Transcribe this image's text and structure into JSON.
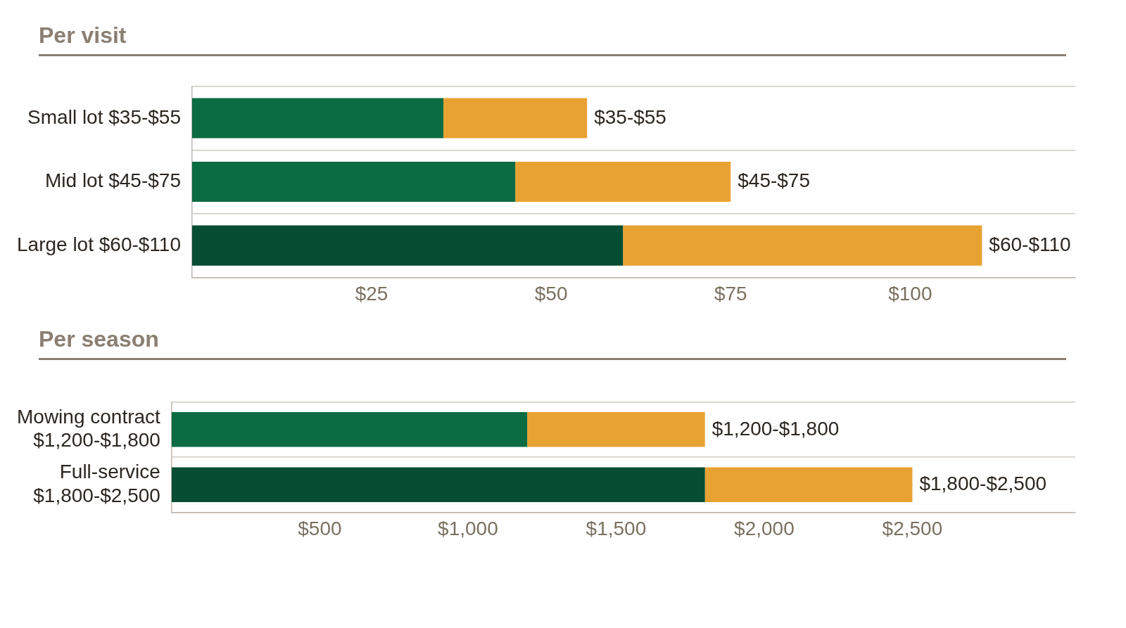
{
  "chart_data": [
    {
      "type": "bar",
      "title": "Per visit",
      "orientation": "horizontal",
      "stacked": true,
      "grid": "y",
      "legend": false,
      "categories": [
        "Small lot $35-$55",
        "Mid lot $45-$75",
        "Large lot $60-$110"
      ],
      "series": [
        {
          "colors": [
            "#0b6b43",
            "#0b6b43",
            "#074d33"
          ],
          "values": [
            35,
            45,
            60
          ]
        },
        {
          "color": "#e8a232",
          "values": [
            20,
            30,
            50
          ]
        }
      ],
      "totals": [
        "$35-$55",
        "$45-$75",
        "$60-$110"
      ],
      "xlim": [
        0,
        123
      ],
      "xticks": [
        {
          "value": 25,
          "label": "$25"
        },
        {
          "value": 50,
          "label": "$50"
        },
        {
          "value": 75,
          "label": "$75"
        },
        {
          "value": 100,
          "label": "$100"
        }
      ]
    },
    {
      "type": "bar",
      "title": "Per season",
      "orientation": "horizontal",
      "stacked": true,
      "grid": "y",
      "legend": false,
      "categories": [
        "Mowing contract\n$1,200-$1,800",
        "Full-service\n$1,800-$2,500"
      ],
      "series": [
        {
          "colors": [
            "#0b6b43",
            "#074d33"
          ],
          "values": [
            1200,
            1800
          ]
        },
        {
          "color": "#e8a232",
          "values": [
            600,
            700
          ]
        }
      ],
      "totals": [
        "$1,200-$1,800",
        "$1,800-$2,500"
      ],
      "xlim": [
        0,
        3050
      ],
      "xticks": [
        {
          "value": 500,
          "label": "$500"
        },
        {
          "value": 1000,
          "label": "$1,000"
        },
        {
          "value": 1500,
          "label": "$1,500"
        },
        {
          "value": 2000,
          "label": "$2,000"
        },
        {
          "value": 2500,
          "label": "$2,500"
        }
      ]
    }
  ]
}
